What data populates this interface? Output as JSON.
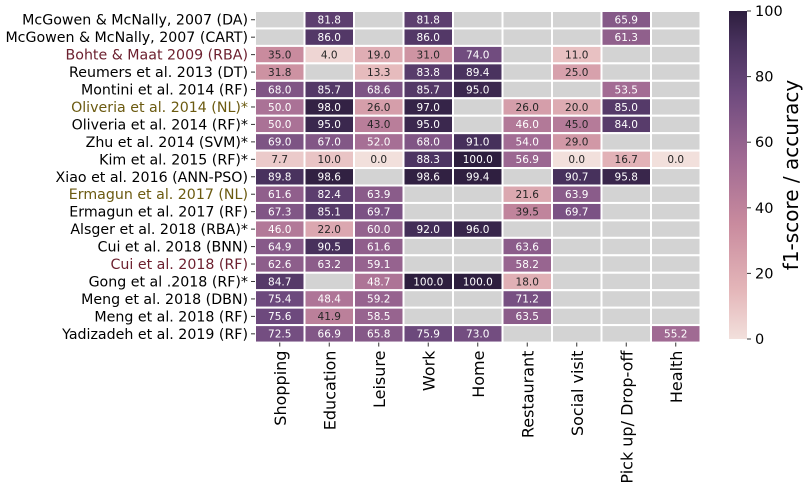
{
  "chart_data": {
    "type": "heatmap",
    "title": "",
    "xlabel": "",
    "ylabel": "",
    "colorbar": {
      "label": "f1-score / accuracy",
      "range": [
        0,
        100
      ],
      "ticks": [
        0,
        20,
        40,
        60,
        80,
        100
      ],
      "color_low": "#f2e0dc",
      "color_high": "#2d1e3e"
    },
    "missing_color": "#d3d3d3",
    "columns": [
      "Shopping",
      "Education",
      "Leisure",
      "Work",
      "Home",
      "Restaurant",
      "Social visit",
      "Pick up/ Drop-off",
      "Health"
    ],
    "rows": [
      {
        "label": "McGowen & McNally, 2007 (DA)",
        "label_color": "#000000",
        "values": [
          null,
          81.8,
          null,
          81.8,
          null,
          null,
          null,
          65.9,
          null
        ]
      },
      {
        "label": "McGowen & McNally, 2007 (CART)",
        "label_color": "#000000",
        "values": [
          null,
          86.0,
          null,
          86.0,
          null,
          null,
          null,
          61.3,
          null
        ]
      },
      {
        "label": "Bohte & Maat 2009 (RBA)",
        "label_color": "#6b1f2e",
        "values": [
          35.0,
          4.0,
          19.0,
          31.0,
          74.0,
          null,
          11.0,
          null,
          null
        ]
      },
      {
        "label": "Reumers et al. 2013 (DT)",
        "label_color": "#000000",
        "values": [
          31.8,
          null,
          13.3,
          83.8,
          89.4,
          null,
          25.0,
          null,
          null
        ]
      },
      {
        "label": "Montini et al. 2014 (RF)",
        "label_color": "#000000",
        "values": [
          68.0,
          85.7,
          68.6,
          85.7,
          95.0,
          null,
          null,
          53.5,
          null
        ]
      },
      {
        "label": "Oliveria et al. 2014 (NL)*",
        "label_color": "#6b5a10",
        "values": [
          50.0,
          98.0,
          26.0,
          97.0,
          null,
          26.0,
          20.0,
          85.0,
          null
        ]
      },
      {
        "label": "Oliveria et al. 2014 (RF)*",
        "label_color": "#000000",
        "values": [
          50.0,
          95.0,
          43.0,
          95.0,
          null,
          46.0,
          45.0,
          84.0,
          null
        ]
      },
      {
        "label": "Zhu et al. 2014 (SVM)*",
        "label_color": "#000000",
        "values": [
          69.0,
          67.0,
          52.0,
          68.0,
          91.0,
          54.0,
          29.0,
          null,
          null
        ]
      },
      {
        "label": "Kim et al. 2015 (RF)*",
        "label_color": "#000000",
        "values": [
          7.7,
          10.0,
          0.0,
          88.3,
          100.0,
          56.9,
          0.0,
          16.7,
          0.0
        ]
      },
      {
        "label": "Xiao et al. 2016 (ANN-PSO)",
        "label_color": "#000000",
        "values": [
          89.8,
          98.6,
          null,
          98.6,
          99.4,
          null,
          90.7,
          95.8,
          null
        ]
      },
      {
        "label": "Ermagun et al. 2017 (NL)",
        "label_color": "#6b5a10",
        "values": [
          61.6,
          82.4,
          63.9,
          null,
          null,
          21.6,
          63.9,
          null,
          null
        ]
      },
      {
        "label": "Ermagun et al. 2017 (RF)",
        "label_color": "#000000",
        "values": [
          67.3,
          85.1,
          69.7,
          null,
          null,
          39.5,
          69.7,
          null,
          null
        ]
      },
      {
        "label": "Alsger et al. 2018 (RBA)*",
        "label_color": "#000000",
        "values": [
          46.0,
          22.0,
          60.0,
          92.0,
          96.0,
          null,
          null,
          null,
          null
        ]
      },
      {
        "label": "Cui et al. 2018 (BNN)",
        "label_color": "#000000",
        "values": [
          64.9,
          90.5,
          61.6,
          null,
          null,
          63.6,
          null,
          null,
          null
        ]
      },
      {
        "label": "Cui et al. 2018 (RF)",
        "label_color": "#6b1f2e",
        "values": [
          62.6,
          63.2,
          59.1,
          null,
          null,
          58.2,
          null,
          null,
          null
        ]
      },
      {
        "label": "Gong et al .2018 (RF)*",
        "label_color": "#000000",
        "values": [
          84.7,
          null,
          48.7,
          100.0,
          100.0,
          18.0,
          null,
          null,
          null
        ]
      },
      {
        "label": "Meng et al. 2018 (DBN)",
        "label_color": "#000000",
        "values": [
          75.4,
          48.4,
          59.2,
          null,
          null,
          71.2,
          null,
          null,
          null
        ]
      },
      {
        "label": "Meng et al. 2018 (RF)",
        "label_color": "#000000",
        "values": [
          75.6,
          41.9,
          58.5,
          null,
          null,
          63.5,
          null,
          null,
          null
        ]
      },
      {
        "label": "Yadizadeh et al. 2019 (RF)",
        "label_color": "#000000",
        "values": [
          72.5,
          66.9,
          65.8,
          75.9,
          73.0,
          null,
          null,
          null,
          55.2
        ]
      }
    ]
  }
}
